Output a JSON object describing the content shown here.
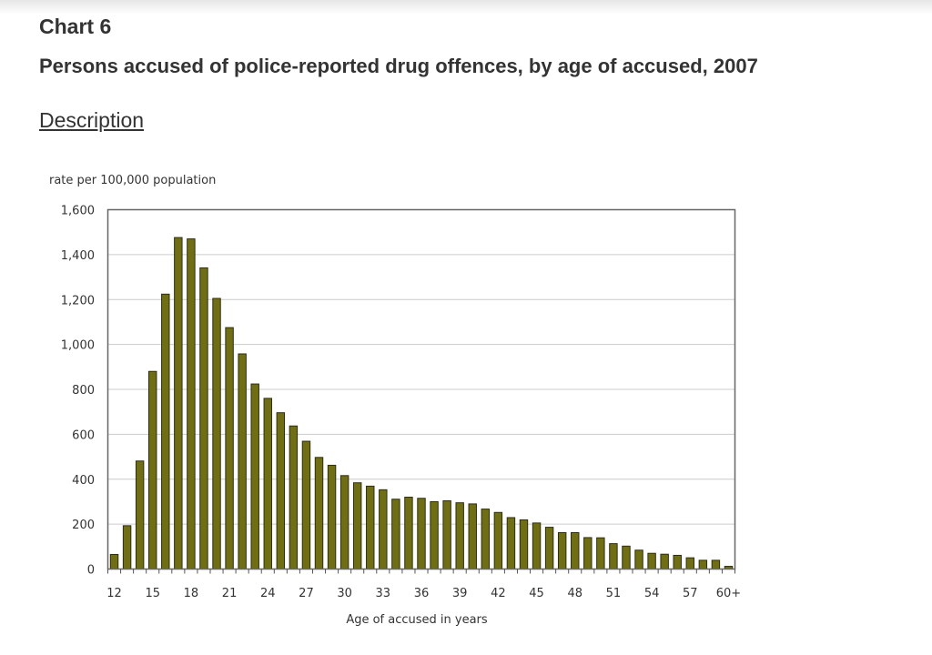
{
  "page": {
    "chart_label": "Chart 6",
    "title": "Persons accused of police-reported drug offences, by age of accused, 2007",
    "description_link": "Description"
  },
  "colors": {
    "bar_fill": "#6f6e14",
    "bar_stroke": "#2f2f10",
    "grid": "#cccccc",
    "frame": "#666666"
  },
  "chart_data": {
    "type": "bar",
    "title": "Persons accused of police-reported drug offences, by age of accused, 2007",
    "xlabel": "Age of accused in years",
    "ylabel": "rate per 100,000 population",
    "ylim": [
      0,
      1600
    ],
    "yticks": [
      0,
      200,
      400,
      600,
      800,
      1000,
      1200,
      1400,
      1600
    ],
    "ytick_labels": [
      "0",
      "200",
      "400",
      "600",
      "800",
      "1,000",
      "1,200",
      "1,400",
      "1,600"
    ],
    "xtick_labels_shown": [
      "12",
      "15",
      "18",
      "21",
      "24",
      "27",
      "30",
      "33",
      "36",
      "39",
      "42",
      "45",
      "48",
      "51",
      "54",
      "57",
      "60+"
    ],
    "grid": true,
    "legend": "none",
    "categories": [
      "12",
      "13",
      "14",
      "15",
      "16",
      "17",
      "18",
      "19",
      "20",
      "21",
      "22",
      "23",
      "24",
      "25",
      "26",
      "27",
      "28",
      "29",
      "30",
      "31",
      "32",
      "33",
      "34",
      "35",
      "36",
      "37",
      "38",
      "39",
      "40",
      "41",
      "42",
      "43",
      "44",
      "45",
      "46",
      "47",
      "48",
      "49",
      "50",
      "51",
      "52",
      "53",
      "54",
      "55",
      "56",
      "57",
      "58",
      "59",
      "60+"
    ],
    "values": [
      65,
      193,
      481,
      880,
      1224,
      1476,
      1470,
      1341,
      1205,
      1075,
      958,
      824,
      760,
      696,
      637,
      569,
      497,
      462,
      416,
      384,
      369,
      353,
      311,
      320,
      315,
      300,
      304,
      295,
      290,
      267,
      252,
      229,
      219,
      205,
      186,
      162,
      162,
      140,
      139,
      113,
      102,
      84,
      70,
      66,
      61,
      50,
      39,
      39,
      12
    ]
  }
}
